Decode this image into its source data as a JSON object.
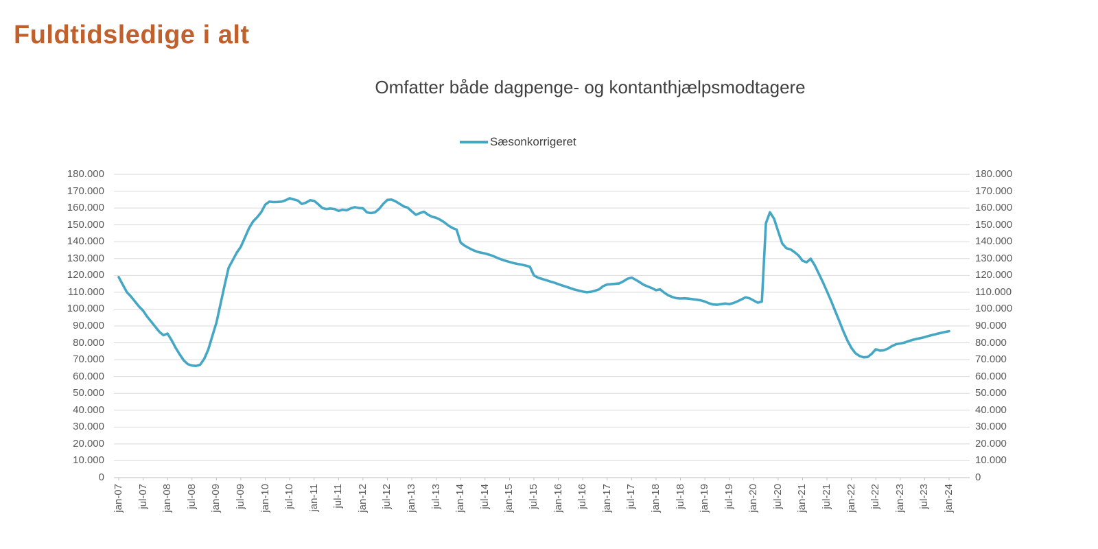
{
  "page": {
    "title": "Fuldtidsledige i alt"
  },
  "colors": {
    "title": "#C0602C",
    "text_dark": "#404040",
    "axis_text": "#595959",
    "grid": "#D9D9D9",
    "axis": "#BFBFBF",
    "series": "#46A7C5",
    "background": "#FFFFFF"
  },
  "chart_data": {
    "type": "line",
    "title": "Omfatter både dagpenge- og kontanthjælpsmodtagere",
    "legend_position": "top",
    "grid": true,
    "ylim": [
      0,
      180000
    ],
    "y_step": 10000,
    "y_axis_sides": [
      "left",
      "right"
    ],
    "y_tick_labels": [
      "0",
      "10.000",
      "20.000",
      "30.000",
      "40.000",
      "50.000",
      "60.000",
      "70.000",
      "80.000",
      "90.000",
      "100.000",
      "110.000",
      "120.000",
      "130.000",
      "140.000",
      "150.000",
      "160.000",
      "170.000",
      "180.000"
    ],
    "x_tick_labels": [
      "jan-07",
      "jul-07",
      "jan-08",
      "jul-08",
      "jan-09",
      "jul-09",
      "jan-10",
      "jul-10",
      "jan-11",
      "jul-11",
      "jan-12",
      "jul-12",
      "jan-13",
      "jul-13",
      "jan-14",
      "jul-14",
      "jan-15",
      "jul-15",
      "jan-16",
      "jul-16",
      "jan-17",
      "jul-17",
      "jan-18",
      "jul-18",
      "jan-19",
      "jul-19",
      "jan-20",
      "jul-20",
      "jan-21",
      "jul-21",
      "jan-22",
      "jul-22",
      "jan-23",
      "jul-23",
      "jan-24"
    ],
    "x_start": "jan-07",
    "x_end": "jan-24",
    "frequency": "monthly",
    "series": [
      {
        "name": "Sæsonkorrigeret",
        "color": "#46A7C5",
        "values": [
          119000,
          114500,
          110000,
          107500,
          104500,
          101500,
          99000,
          95500,
          92500,
          89500,
          86500,
          84500,
          85500,
          81500,
          77000,
          73000,
          69500,
          67300,
          66500,
          66300,
          67000,
          70500,
          76000,
          84000,
          92000,
          103000,
          114000,
          124500,
          129000,
          133500,
          137000,
          142500,
          148000,
          152000,
          154500,
          157500,
          162000,
          163800,
          163500,
          163600,
          163800,
          164600,
          165800,
          165100,
          164400,
          162400,
          163200,
          164600,
          164300,
          162300,
          160000,
          159400,
          159700,
          159400,
          158300,
          159000,
          158600,
          159800,
          160500,
          160000,
          159800,
          157400,
          157000,
          157500,
          159500,
          162500,
          164800,
          165000,
          164000,
          162500,
          161000,
          160200,
          158000,
          156000,
          157000,
          157800,
          156000,
          154800,
          154200,
          153000,
          151500,
          149600,
          148100,
          147200,
          139500,
          137600,
          136300,
          135100,
          134100,
          133500,
          133000,
          132300,
          131500,
          130400,
          129500,
          128700,
          128000,
          127300,
          126800,
          126400,
          125800,
          125200,
          120000,
          118700,
          117900,
          117200,
          116400,
          115700,
          114800,
          114000,
          113200,
          112400,
          111600,
          111000,
          110400,
          110000,
          110300,
          110900,
          111700,
          113600,
          114600,
          114800,
          115000,
          115300,
          116500,
          118000,
          118700,
          117400,
          116000,
          114400,
          113400,
          112500,
          111200,
          111700,
          109800,
          108200,
          107200,
          106500,
          106300,
          106400,
          106200,
          105900,
          105600,
          105200,
          104500,
          103500,
          102800,
          102600,
          103000,
          103300,
          103000,
          103600,
          104600,
          105800,
          107000,
          106400,
          105100,
          103800,
          104500,
          151000,
          157500,
          153600,
          146200,
          139000,
          136200,
          135500,
          133900,
          131900,
          128700,
          127800,
          129900,
          126000,
          121000,
          116000,
          110500,
          105000,
          99000,
          93000,
          87000,
          81500,
          77000,
          73800,
          72200,
          71400,
          71600,
          73500,
          76200,
          75400,
          75600,
          76600,
          78100,
          79200,
          79600,
          80100,
          81000,
          81700,
          82300,
          82800,
          83400,
          84100,
          84700,
          85300,
          85900,
          86400,
          86900
        ]
      }
    ]
  }
}
